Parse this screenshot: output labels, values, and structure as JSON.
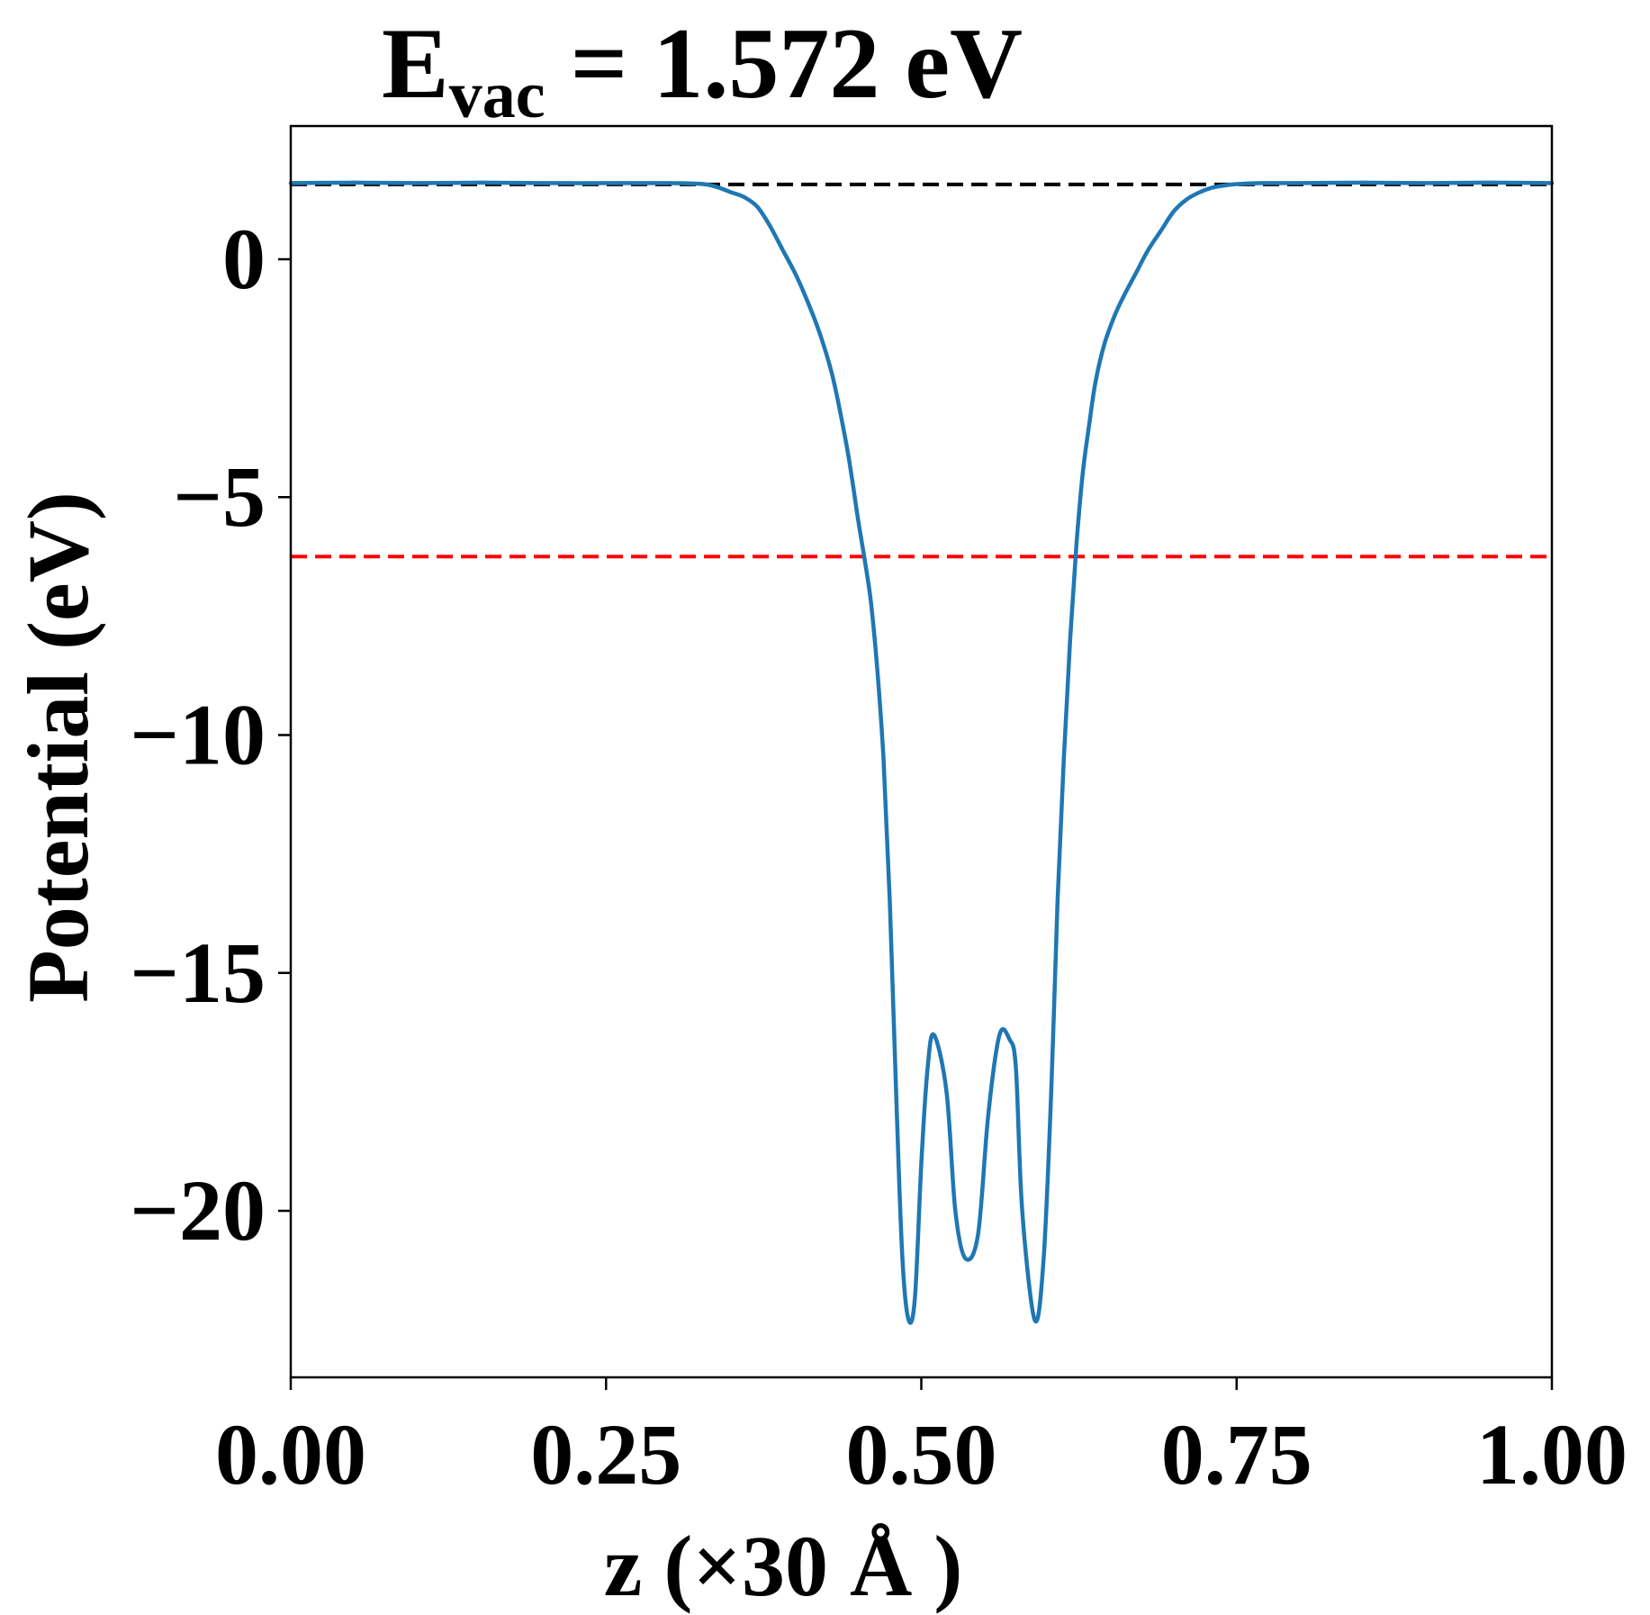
{
  "chart_data": {
    "type": "line",
    "title": {
      "main": "E",
      "subscript": "vac",
      "rest": " = 1.572 eV"
    },
    "xlabel": "z (×30 Å )",
    "ylabel": "Potential (eV)",
    "xlim": [
      0,
      1
    ],
    "ylim": [
      -23.5,
      2.8
    ],
    "xticks": [
      0,
      0.25,
      0.5,
      0.75,
      1.0
    ],
    "xtick_labels": [
      "0.00",
      "0.25",
      "0.50",
      "0.75",
      "1.00"
    ],
    "yticks": [
      0,
      -5,
      -10,
      -15,
      -20
    ],
    "ytick_labels": [
      "0",
      "−5",
      "−10",
      "−15",
      "−20"
    ],
    "grid": false,
    "series": [
      {
        "color": "#1f77b4",
        "x": [
          0.0,
          0.05,
          0.1,
          0.15,
          0.2,
          0.25,
          0.3,
          0.33,
          0.35,
          0.36,
          0.37,
          0.38,
          0.39,
          0.4,
          0.41,
          0.42,
          0.43,
          0.44,
          0.445,
          0.45,
          0.455,
          0.46,
          0.465,
          0.47,
          0.475,
          0.48,
          0.485,
          0.49,
          0.495,
          0.5,
          0.505,
          0.51,
          0.52,
          0.527,
          0.535,
          0.545,
          0.553,
          0.562,
          0.57,
          0.575,
          0.58,
          0.59,
          0.597,
          0.603,
          0.608,
          0.613,
          0.618,
          0.623,
          0.628,
          0.633,
          0.638,
          0.645,
          0.653,
          0.66,
          0.67,
          0.68,
          0.69,
          0.7,
          0.71,
          0.72,
          0.73,
          0.74,
          0.75,
          0.77,
          0.8,
          0.85,
          0.9,
          0.95,
          1.0
        ],
        "y": [
          1.6,
          1.61,
          1.6,
          1.61,
          1.6,
          1.6,
          1.6,
          1.57,
          1.4,
          1.3,
          1.1,
          0.7,
          0.2,
          -0.3,
          -0.9,
          -1.6,
          -2.5,
          -3.8,
          -4.6,
          -5.5,
          -6.3,
          -7.2,
          -8.6,
          -10.5,
          -13.5,
          -17.5,
          -21.0,
          -22.3,
          -21.8,
          -19.0,
          -17.0,
          -16.3,
          -17.5,
          -20.0,
          -21.0,
          -20.5,
          -18.0,
          -16.3,
          -16.4,
          -17.0,
          -20.0,
          -22.3,
          -21.0,
          -17.5,
          -13.5,
          -10.5,
          -8.0,
          -6.0,
          -4.5,
          -3.5,
          -2.6,
          -1.8,
          -1.2,
          -0.8,
          -0.3,
          0.2,
          0.6,
          1.0,
          1.25,
          1.4,
          1.5,
          1.55,
          1.58,
          1.6,
          1.6,
          1.61,
          1.6,
          1.61,
          1.6
        ]
      }
    ],
    "hlines": [
      {
        "y": 1.572,
        "color": "#000000",
        "style": "dashed"
      },
      {
        "y": -6.25,
        "color": "#ff0000",
        "style": "dashed"
      }
    ]
  }
}
